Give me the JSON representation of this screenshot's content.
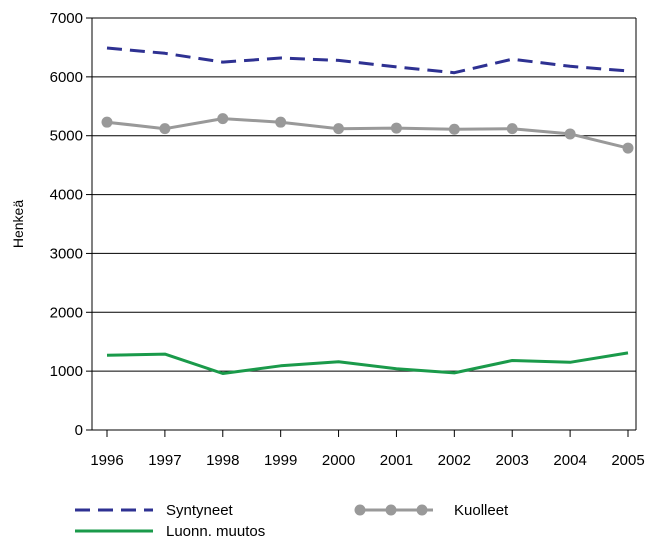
{
  "chart_data": {
    "type": "line",
    "title": "",
    "xlabel": "",
    "ylabel": "Henkeä",
    "categories": [
      "1996",
      "1997",
      "1998",
      "1999",
      "2000",
      "2001",
      "2002",
      "2003",
      "2004",
      "2005"
    ],
    "ylim": [
      0,
      7000
    ],
    "yticks": [
      0,
      1000,
      2000,
      3000,
      4000,
      5000,
      6000,
      7000
    ],
    "grid": true,
    "legend_position": "bottom",
    "series": [
      {
        "name": "Syntyneet",
        "style": "dashed",
        "color": "#2e3192",
        "values": [
          6490,
          6400,
          6250,
          6320,
          6280,
          6170,
          6070,
          6300,
          6180,
          6100
        ]
      },
      {
        "name": "Kuolleet",
        "style": "line-markers",
        "color": "#999999",
        "values": [
          5230,
          5120,
          5290,
          5230,
          5120,
          5130,
          5110,
          5120,
          5030,
          4790
        ]
      },
      {
        "name": "Luonn. muutos",
        "style": "solid",
        "color": "#1a9a4a",
        "values": [
          1270,
          1290,
          960,
          1090,
          1160,
          1040,
          970,
          1180,
          1150,
          1310
        ]
      }
    ]
  }
}
